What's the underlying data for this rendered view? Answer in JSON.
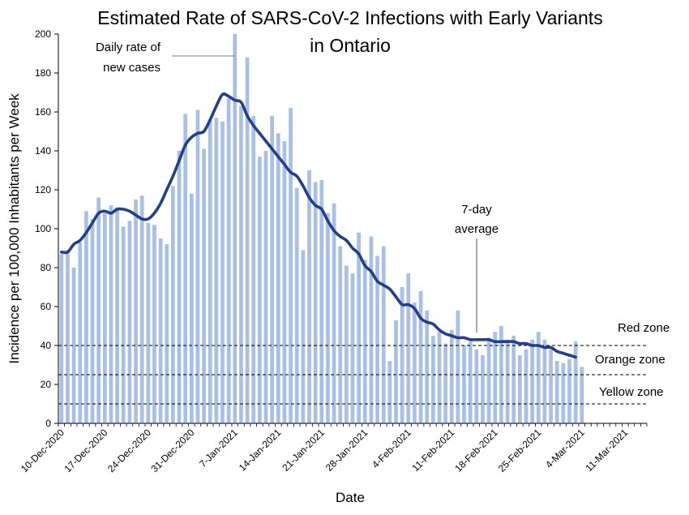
{
  "chart_data": {
    "type": "bar",
    "title_line1": "Estimated Rate of SARS-CoV-2 Infections with Early Variants",
    "title_line2": "in Ontario",
    "xlabel": "Date",
    "ylabel": "Incidence per 100,000 Inhabitants per Week",
    "ylim": [
      0,
      200
    ],
    "yticks": [
      0,
      20,
      40,
      60,
      80,
      100,
      120,
      140,
      160,
      180,
      200
    ],
    "x_start": "2020-12-10",
    "x_end": "2021-03-15",
    "x_tick_labels": [
      "10-Dec-2020",
      "17-Dec-2020",
      "24-Dec-2020",
      "31-Dec-2020",
      "7-Jan-2021",
      "14-Jan-2021",
      "21-Jan-2021",
      "28-Jan-2021",
      "4-Feb-2021",
      "11-Feb-2021",
      "18-Feb-2021",
      "25-Feb-2021",
      "4-Mar-2021",
      "11-Mar-2021"
    ],
    "series": [
      {
        "name": "Daily rate of new cases",
        "kind": "bar",
        "color": "#a8bfe6",
        "values": [
          87,
          89,
          80,
          93,
          109,
          105,
          116,
          108,
          112,
          111,
          101,
          104,
          115,
          117,
          103,
          102,
          95,
          92,
          122,
          140,
          159,
          118,
          161,
          141,
          156,
          157,
          155,
          167,
          200,
          163,
          188,
          158,
          137,
          140,
          158,
          149,
          145,
          162,
          121,
          89,
          130,
          124,
          125,
          108,
          113,
          91,
          81,
          77,
          98,
          84,
          96,
          86,
          91,
          32,
          53,
          70,
          77,
          62,
          68,
          58,
          45,
          47,
          41,
          48,
          58,
          40,
          42,
          38,
          35,
          44,
          47,
          50,
          43,
          45,
          35,
          38,
          43,
          47,
          43,
          38,
          32,
          31,
          33,
          42,
          29
        ]
      },
      {
        "name": "7-day average",
        "kind": "line",
        "color": "#213f8a",
        "values": [
          88,
          88,
          92,
          94,
          98,
          103,
          108,
          109,
          108,
          110,
          110,
          109,
          107,
          105,
          105,
          108,
          113,
          120,
          127,
          135,
          143,
          147,
          149,
          150,
          156,
          163,
          169,
          168,
          166,
          165,
          158,
          153,
          149,
          145,
          141,
          137,
          133,
          129,
          127,
          122,
          116,
          112,
          110,
          104,
          99,
          96,
          94,
          90,
          87,
          81,
          78,
          73,
          71,
          69,
          65,
          61,
          61,
          59,
          54,
          52,
          51,
          48,
          46,
          45,
          44,
          44,
          43,
          43,
          43,
          43,
          42,
          42,
          42,
          42,
          41,
          41,
          40,
          40,
          39,
          39,
          37,
          36,
          35,
          34
        ]
      }
    ],
    "zones": [
      {
        "label": "Red zone",
        "value": 40
      },
      {
        "label": "Orange zone",
        "value": 25
      },
      {
        "label": "Yellow zone",
        "value": 10
      }
    ],
    "annotations": [
      {
        "line1": "Daily rate of",
        "line2": "new cases"
      },
      {
        "line1": "7-day",
        "line2": "average"
      }
    ],
    "grid": false,
    "legend": "none"
  }
}
